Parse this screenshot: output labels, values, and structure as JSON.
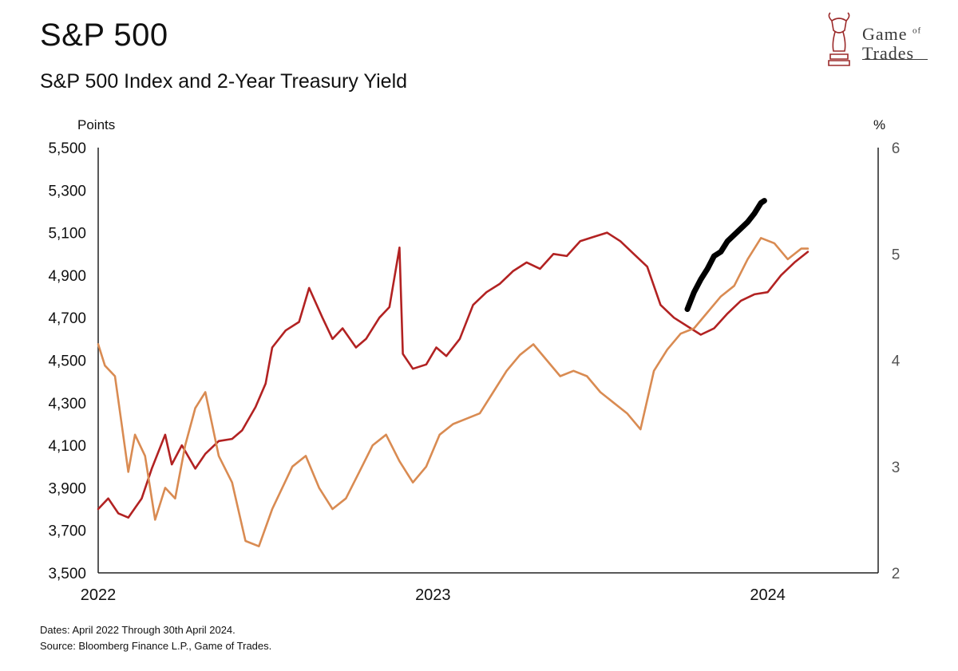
{
  "header": {
    "title": "S&P 500",
    "subtitle": "S&P 500 Index and 2-Year Treasury Yield"
  },
  "logo": {
    "line1": "Game",
    "line1_small": "of",
    "line2": "Trades",
    "icon": "bull-knight-chess-icon",
    "color": "#9b2a2a"
  },
  "footnotes": {
    "dates": "Dates: April 2022 Through 30th April 2024.",
    "source": "Source: Bloomberg Finance L.P., Game of Trades."
  },
  "chart_data": {
    "type": "line",
    "title": "S&P 500 Index and 2-Year Treasury Yield",
    "x_ticks": [
      "2022",
      "2023",
      "2024"
    ],
    "x_tick_positions_years": [
      2022.0,
      2023.0,
      2024.0
    ],
    "xlim_years": [
      2022.0,
      2024.33
    ],
    "left_axis": {
      "unit": "Points",
      "ylim": [
        3500,
        5500
      ],
      "ticks": [
        "5,500",
        "5,300",
        "5,100",
        "4,900",
        "4,700",
        "4,500",
        "4,300",
        "4,100",
        "3,900",
        "3,700",
        "3,500"
      ],
      "tick_values": [
        5500,
        5300,
        5100,
        4900,
        4700,
        4500,
        4300,
        4100,
        3900,
        3700,
        3500
      ]
    },
    "right_axis": {
      "unit": "%",
      "ylim": [
        2,
        6
      ],
      "ticks": [
        "6",
        "5",
        "4",
        "3",
        "2"
      ],
      "tick_values": [
        6,
        5,
        4,
        3,
        2
      ]
    },
    "series": [
      {
        "axis": "left",
        "color": "#b22222",
        "x": [
          2022.0,
          2022.03,
          2022.06,
          2022.09,
          2022.13,
          2022.16,
          2022.2,
          2022.22,
          2022.25,
          2022.29,
          2022.32,
          2022.36,
          2022.4,
          2022.43,
          2022.47,
          2022.5,
          2022.52,
          2022.56,
          2022.6,
          2022.63,
          2022.67,
          2022.7,
          2022.73,
          2022.77,
          2022.8,
          2022.84,
          2022.87,
          2022.9,
          2022.91,
          2022.94,
          2022.98,
          2023.01,
          2023.04,
          2023.08,
          2023.12,
          2023.16,
          2023.2,
          2023.24,
          2023.28,
          2023.32,
          2023.36,
          2023.4,
          2023.44,
          2023.48,
          2023.52,
          2023.56,
          2023.6,
          2023.64,
          2023.68,
          2023.72,
          2023.76,
          2023.8,
          2023.84,
          2023.88,
          2023.92,
          2023.96,
          2024.0,
          2024.04,
          2024.08,
          2024.12
        ],
        "values": [
          3800,
          3850,
          3780,
          3760,
          3850,
          3990,
          4150,
          4010,
          4100,
          3990,
          4060,
          4120,
          4130,
          4170,
          4280,
          4390,
          4560,
          4640,
          4680,
          4840,
          4700,
          4600,
          4650,
          4560,
          4600,
          4700,
          4750,
          5030,
          4530,
          4460,
          4480,
          4560,
          4520,
          4600,
          4760,
          4820,
          4860,
          4920,
          4960,
          4930,
          5000,
          4990,
          5060,
          5080,
          5100,
          5060,
          5000,
          4940,
          4760,
          4700,
          4660,
          4620,
          4650,
          4720,
          4780,
          4810,
          4820,
          4900,
          4960,
          5010
        ]
      },
      {
        "axis": "right",
        "color": "#d98b52",
        "x": [
          2022.0,
          2022.02,
          2022.05,
          2022.07,
          2022.09,
          2022.11,
          2022.14,
          2022.17,
          2022.2,
          2022.23,
          2022.26,
          2022.29,
          2022.32,
          2022.36,
          2022.4,
          2022.44,
          2022.48,
          2022.52,
          2022.55,
          2022.58,
          2022.62,
          2022.66,
          2022.7,
          2022.74,
          2022.78,
          2022.82,
          2022.86,
          2022.9,
          2022.94,
          2022.98,
          2023.02,
          2023.06,
          2023.1,
          2023.14,
          2023.18,
          2023.22,
          2023.26,
          2023.3,
          2023.34,
          2023.38,
          2023.42,
          2023.46,
          2023.5,
          2023.54,
          2023.58,
          2023.62,
          2023.66,
          2023.7,
          2023.74,
          2023.78,
          2023.82,
          2023.86,
          2023.9,
          2023.94,
          2023.98,
          2024.02,
          2024.06,
          2024.1,
          2024.12
        ],
        "values": [
          4.15,
          3.95,
          3.85,
          3.4,
          2.95,
          3.3,
          3.1,
          2.5,
          2.8,
          2.7,
          3.2,
          3.55,
          3.7,
          3.1,
          2.85,
          2.3,
          2.25,
          2.6,
          2.8,
          3.0,
          3.1,
          2.8,
          2.6,
          2.7,
          2.95,
          3.2,
          3.3,
          3.05,
          2.85,
          3.0,
          3.3,
          3.4,
          3.45,
          3.5,
          3.7,
          3.9,
          4.05,
          4.15,
          4.0,
          3.85,
          3.9,
          3.85,
          3.7,
          3.6,
          3.5,
          3.35,
          3.9,
          4.1,
          4.25,
          4.3,
          4.45,
          4.6,
          4.7,
          4.95,
          5.15,
          5.1,
          4.95,
          5.05,
          5.05
        ]
      },
      {
        "axis": "left",
        "color": "#000000",
        "x": [
          2023.76,
          2023.78,
          2023.8,
          2023.82,
          2023.84,
          2023.86,
          2023.88,
          2023.9,
          2023.92,
          2023.94,
          2023.96,
          2023.98,
          2023.99
        ],
        "values": [
          4740,
          4820,
          4880,
          4930,
          4990,
          5010,
          5060,
          5090,
          5120,
          5150,
          5190,
          5240,
          5250
        ]
      }
    ],
    "grid": false,
    "legend": "none"
  }
}
